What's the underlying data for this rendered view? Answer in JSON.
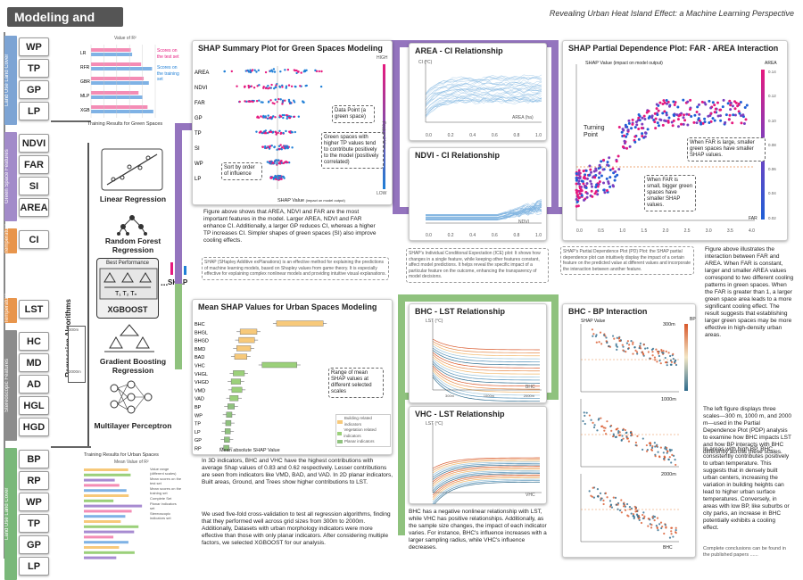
{
  "header": {
    "title": "Modeling and Analysis",
    "subtitle": "Revealing Urban Heat Island Effect: a Machine Learning Perspective"
  },
  "green_features": [
    {
      "group": "Land Use Land Cover",
      "color": "#7da4d4",
      "items": [
        "WP",
        "TP",
        "GP",
        "LP"
      ]
    },
    {
      "group": "Green Space Features",
      "color": "#a28bc9",
      "items": [
        "NDVI",
        "FAR",
        "SI",
        "AREA"
      ]
    },
    {
      "group": "Temperature",
      "color": "#e8954c",
      "items": [
        "CI"
      ]
    }
  ],
  "urban_features": [
    {
      "group": "Temperature",
      "color": "#e8954c",
      "items": [
        "LST"
      ]
    },
    {
      "group": "Stereoscopic Features",
      "color": "#8c8c8c",
      "items": [
        "HC",
        "MD",
        "AD",
        "HGL",
        "HGD"
      ]
    },
    {
      "group": "Land Use Land Cover",
      "color": "#7ab87a",
      "items": [
        "BP",
        "RP",
        "WP",
        "TP",
        "GP",
        "LP"
      ]
    }
  ],
  "algorithms": {
    "column_label": "Regression Algorithms",
    "items": [
      "Linear Regression",
      "Random Forest Regression",
      "XGBOOST",
      "Gradient Boosting Regression",
      "Multilayer Perceptron"
    ],
    "best_label": "Best Performance",
    "shap_label": "SHAP",
    "ellipsis": "...",
    "grid_label": "Grid Sizes",
    "grid_top": "300m",
    "grid_bottom": "2000m"
  },
  "training_top": {
    "caption": "Training Results for Green Spaces",
    "axis": "Value of R²",
    "models": [
      "LR",
      "RFR",
      "GBR",
      "MLP",
      "XGB"
    ],
    "legend": [
      "Scores on the test set",
      "Scores on the training set"
    ]
  },
  "training_bottom": {
    "caption": "Training Results for Urban Spaces",
    "axis": "Mean Value of R²",
    "legend": [
      "Value range (different scales)",
      "Mean scores on the test set",
      "Mean scores on the training set",
      "Complete Set",
      "Planar indicators set",
      "Stereoscopic indicators set"
    ]
  },
  "shap_summary": {
    "title": "SHAP Summary Plot for Green Spaces Modeling",
    "features": [
      "AREA",
      "NDVI",
      "FAR",
      "GP",
      "TP",
      "SI",
      "WP",
      "LP"
    ],
    "xlabel": "SHAP Value",
    "xnote": "(impact on model output)",
    "high": "HIGH",
    "low": "LOW",
    "feature_value": "Feature Value",
    "ann_point": "Data Point (a green space)",
    "ann_green": "Green spaces with higher TP values tend to contribute positively to the model (positively correlated)",
    "ann_sort": "Sort by order of influence",
    "desc": "Figure above shows that AREA, NDVI and FAR are the most important features in the model. Larger AREA, NDVI and FAR enhance CI. Additionally, a larger GP reduces CI, whereas a higher TP increases CI. Simpler shapes of green spaces (SI) also improve cooling effects.",
    "shap_def": "SHAP (SHapley Additive exPlanations) is an effective method for explaining the predictions of machine learning models, based on Shapley values from game theory. It is especially effective for explaining complex nonlinear models and providing intuitive visual explanations."
  },
  "mean_shap": {
    "title": "Mean SHAP Values for Urban Spaces Modeling",
    "features": [
      "BHC",
      "BHGL",
      "BHGD",
      "BMD",
      "BAD",
      "VHC",
      "VHGL",
      "VHGD",
      "VMD",
      "VAD",
      "BP",
      "WP",
      "TP",
      "LP",
      "GP",
      "RP"
    ],
    "values": [
      0.83,
      0.3,
      0.28,
      0.25,
      0.22,
      0.62,
      0.2,
      0.17,
      0.18,
      0.15,
      0.12,
      0.1,
      0.09,
      0.08,
      0.07,
      0.06
    ],
    "xlabel": "Mean absolute SHAP Value",
    "range_note": "Range of mean SHAP values at different selected scales",
    "legend": [
      "Building related indicators",
      "Vegetation related indicators",
      "Planar indicators"
    ],
    "desc": "In 3D indicators, BHC and VHC have the highest contributions with average Shap values of 0.83 and 0.62 respectively. Lesser contributions are seen from indicators like VMD, BAD, and VAD. In 2D planar indicators, Built areas, Ground, and Trees show higher contributions to LST.",
    "desc2": "We used five-fold cross-validation to test all regression algorithms, finding that they performed well across grid sizes from 300m to 2000m. Additionally, Datasets with urban morphology indicators were more effective than those with only planar indicators. After considering multiple factors, we selected XGBOOST for our analysis."
  },
  "area_ci": {
    "title": "AREA - CI Relationship",
    "ylabel": "CI (°C)",
    "xlabel": "AREA (ha)",
    "xticks": [
      "0.0",
      "0.2",
      "0.4",
      "0.6",
      "0.8",
      "1.0"
    ],
    "yticks": [
      "0.8",
      "0.6",
      "0.4",
      "0.2",
      "0.0"
    ]
  },
  "ndvi_ci": {
    "title": "NDVI - CI Relationship",
    "xlabel": "NDVI",
    "xticks": [
      "0.0",
      "0.2",
      "0.4",
      "0.6",
      "0.8",
      "1.0"
    ]
  },
  "ice_note": "SHAP's Individual Conditional Expectation (ICE) plot: It shows how changes in a single feature, while keeping other features constant, affect model predictions. It helps reveal the specific impact of a particular feature on the outcome, enhancing the transparency of model decisions.",
  "bhc_lst": {
    "title": "BHC - LST Relationship",
    "ylabel": "LST (°C)",
    "xlabel": "BHC",
    "yticks": [
      "318",
      "317",
      "316",
      "315",
      "314",
      "313"
    ],
    "scale_labels": [
      "300m",
      "1000m",
      "2000m"
    ]
  },
  "vhc_lst": {
    "title": "VHC - LST Relationship",
    "ylabel": "LST (°C)",
    "xlabel": "VHC",
    "yticks": [
      "318",
      "317",
      "316",
      "315"
    ]
  },
  "vhc_desc": "BHC has a negative nonlinear relationship with LST, while VHC has positive relationships. Additionally, as the sample size changes, the impact of each indicator varies. For instance, BHC's influence increases with a larger sampling radius, while VHC's influence decreases.",
  "pdp": {
    "title": "SHAP Partial Dependence Plot: FAR - AREA Interaction",
    "ylabel": "SHAP Value",
    "ynote": "(impact on model output)",
    "xlabel": "FAR",
    "xticks": [
      "0.0",
      "0.5",
      "1.0",
      "1.5",
      "2.0",
      "2.5",
      "3.0",
      "3.5",
      "4.0"
    ],
    "colorbar_label": "AREA",
    "colorbar_ticks": [
      "0.14",
      "0.12",
      "0.10",
      "0.08",
      "0.06",
      "0.04",
      "0.02"
    ],
    "turning": "Turning Point",
    "ann_large": "When FAR is large, smaller green spaces have smaller SHAP values.",
    "ann_small": "When FAR is small, bigger green spaces have smaller SHAP values.",
    "pd_note": "SHAP's Partial Dependence Plot (PD) Plot: the SHAP partial dependence plot can intuitively display the impact of a certain feature on the predicted value at different values and incorporate the interaction between another feature.",
    "desc": "Figure above illustrates the interaction between FAR and AREA. When FAR is constant, larger and smaller AREA values correspond to two different cooling patterns in green spaces. When the FAR is greater than 1, a larger green space area leads to a more significant cooling effect. The result suggests that establishing larger green spaces may be more effective in high-density urban areas."
  },
  "bhc_bp": {
    "title": "BHC - BP Interaction",
    "ylabel": "SHAP Value",
    "xlabel": "BHC",
    "colorbar_label": "BP",
    "scales": [
      "300m",
      "1000m",
      "2000m"
    ],
    "desc1": "The left figure displays three scales—300 m, 1000 m, and 2000 m—used in the Partial Dependence Plot (PDP) analysis to examine how BHC impacts LST and how BP interacts with BHC differently across these scales.",
    "desc2": "In areas with high BP, BHC consistently contributes positively to urban temperature. This suggests that in densely built urban centers, increasing the variation in building heights can lead to higher urban surface temperatures. Conversely, in areas with low BP, like suburbs or city parks, an increase in BHC potentially exhibits a cooling effect.",
    "footnote": "Complete conclusions can be found in the published papers ......"
  },
  "colors": {
    "purple_pipe": "#9474be",
    "green_pipe": "#8fc27e",
    "shap_high": "#e6197e",
    "shap_low": "#1f7fd6"
  }
}
